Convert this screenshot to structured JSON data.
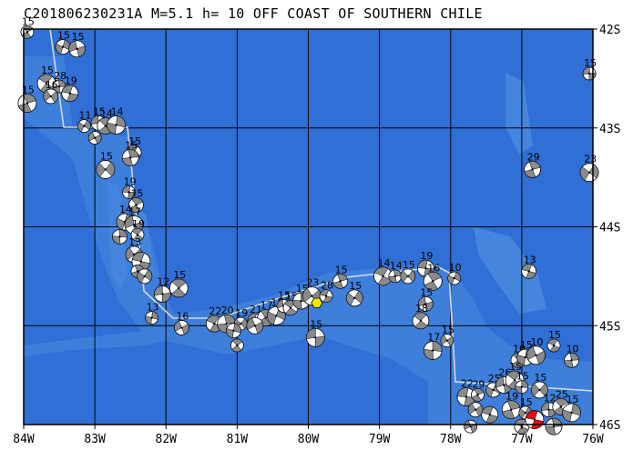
{
  "title": "C201806230231A M=5.1 h= 10 OFF COAST OF SOUTHERN CHILE",
  "map": {
    "lon_range": [
      -84,
      -76
    ],
    "lat_range": [
      -46,
      -42
    ],
    "x_ticks": [
      "84W",
      "83W",
      "82W",
      "81W",
      "80W",
      "79W",
      "78W",
      "77W",
      "76W"
    ],
    "y_ticks": [
      "42S",
      "43S",
      "44S",
      "45S",
      "46S"
    ],
    "colors": {
      "ocean": "#2f6fd6",
      "shelf": "#4b8ce0",
      "grid": "#000000",
      "boundary": "#d8d8d8",
      "hexagon": "#f5e600",
      "highlight": "#e01010"
    },
    "main_event": {
      "lon": -79.88,
      "lat": -44.77,
      "marker": "yellow-hexagon"
    },
    "highlight_event": {
      "lon": -76.82,
      "lat": -45.95,
      "label": "",
      "color": "#e01010"
    },
    "events": [
      {
        "lon": -83.95,
        "lat": -42.03,
        "label": "15"
      },
      {
        "lon": -83.45,
        "lat": -42.18,
        "label": "15"
      },
      {
        "lon": -83.25,
        "lat": -42.2,
        "label": "15"
      },
      {
        "lon": -83.68,
        "lat": -42.55,
        "label": "15"
      },
      {
        "lon": -83.5,
        "lat": -42.58,
        "label": "28"
      },
      {
        "lon": -83.62,
        "lat": -42.68,
        "label": "16"
      },
      {
        "lon": -83.35,
        "lat": -42.65,
        "label": "19"
      },
      {
        "lon": -83.95,
        "lat": -42.75,
        "label": "15"
      },
      {
        "lon": -83.15,
        "lat": -42.98,
        "label": "11"
      },
      {
        "lon": -82.95,
        "lat": -42.95,
        "label": "15"
      },
      {
        "lon": -82.85,
        "lat": -42.98,
        "label": "14"
      },
      {
        "lon": -82.7,
        "lat": -42.97,
        "label": "14"
      },
      {
        "lon": -83.0,
        "lat": -43.1,
        "label": ""
      },
      {
        "lon": -82.45,
        "lat": -43.25,
        "label": "15"
      },
      {
        "lon": -82.5,
        "lat": -43.3,
        "label": "15"
      },
      {
        "lon": -82.85,
        "lat": -43.42,
        "label": "15"
      },
      {
        "lon": -82.52,
        "lat": -43.65,
        "label": "19"
      },
      {
        "lon": -82.42,
        "lat": -43.78,
        "label": "15"
      },
      {
        "lon": -82.58,
        "lat": -43.95,
        "label": "14"
      },
      {
        "lon": -82.45,
        "lat": -43.98,
        "label": "17"
      },
      {
        "lon": -82.4,
        "lat": -44.08,
        "label": "19"
      },
      {
        "lon": -82.65,
        "lat": -44.1,
        "label": ""
      },
      {
        "lon": -82.45,
        "lat": -44.28,
        "label": "13"
      },
      {
        "lon": -82.35,
        "lat": -44.35,
        "label": ""
      },
      {
        "lon": -82.4,
        "lat": -44.45,
        "label": ""
      },
      {
        "lon": -82.3,
        "lat": -44.5,
        "label": ""
      },
      {
        "lon": -82.05,
        "lat": -44.68,
        "label": "12"
      },
      {
        "lon": -81.82,
        "lat": -44.62,
        "label": "15"
      },
      {
        "lon": -82.2,
        "lat": -44.92,
        "label": "13"
      },
      {
        "lon": -81.78,
        "lat": -45.02,
        "label": "16"
      },
      {
        "lon": -81.32,
        "lat": -44.98,
        "label": "22"
      },
      {
        "lon": -81.15,
        "lat": -44.98,
        "label": "20"
      },
      {
        "lon": -80.95,
        "lat": -44.98,
        "label": "19"
      },
      {
        "lon": -80.75,
        "lat": -44.95,
        "label": "21"
      },
      {
        "lon": -80.6,
        "lat": -44.92,
        "label": "17"
      },
      {
        "lon": -80.45,
        "lat": -44.9,
        "label": "15"
      },
      {
        "lon": -80.35,
        "lat": -44.8,
        "label": "15"
      },
      {
        "lon": -80.25,
        "lat": -44.82,
        "label": "15"
      },
      {
        "lon": -80.1,
        "lat": -44.75,
        "label": "15"
      },
      {
        "lon": -79.95,
        "lat": -44.7,
        "label": "23"
      },
      {
        "lon": -79.75,
        "lat": -44.7,
        "label": "28"
      },
      {
        "lon": -79.55,
        "lat": -44.55,
        "label": "15"
      },
      {
        "lon": -79.35,
        "lat": -44.72,
        "label": "15"
      },
      {
        "lon": -79.9,
        "lat": -45.12,
        "label": "15"
      },
      {
        "lon": -81.0,
        "lat": -45.2,
        "label": ""
      },
      {
        "lon": -81.05,
        "lat": -45.05,
        "label": ""
      },
      {
        "lon": -80.75,
        "lat": -45.0,
        "label": ""
      },
      {
        "lon": -78.95,
        "lat": -44.5,
        "label": "14"
      },
      {
        "lon": -78.78,
        "lat": -44.5,
        "label": "14"
      },
      {
        "lon": -78.6,
        "lat": -44.5,
        "label": "15"
      },
      {
        "lon": -78.35,
        "lat": -44.42,
        "label": "19"
      },
      {
        "lon": -78.25,
        "lat": -44.55,
        "label": "16"
      },
      {
        "lon": -77.95,
        "lat": -44.52,
        "label": "10"
      },
      {
        "lon": -78.35,
        "lat": -44.78,
        "label": "15"
      },
      {
        "lon": -78.42,
        "lat": -44.95,
        "label": "18"
      },
      {
        "lon": -78.25,
        "lat": -45.25,
        "label": "17"
      },
      {
        "lon": -78.05,
        "lat": -45.15,
        "label": "15"
      },
      {
        "lon": -76.9,
        "lat": -44.45,
        "label": "13"
      },
      {
        "lon": -76.85,
        "lat": -43.42,
        "label": "29"
      },
      {
        "lon": -76.05,
        "lat": -43.45,
        "label": "23"
      },
      {
        "lon": -76.05,
        "lat": -42.45,
        "label": "15"
      },
      {
        "lon": -77.05,
        "lat": -45.35,
        "label": "10"
      },
      {
        "lon": -76.95,
        "lat": -45.32,
        "label": "15"
      },
      {
        "lon": -76.8,
        "lat": -45.3,
        "label": "10"
      },
      {
        "lon": -76.55,
        "lat": -45.2,
        "label": "15"
      },
      {
        "lon": -76.3,
        "lat": -45.35,
        "label": "10"
      },
      {
        "lon": -76.75,
        "lat": -45.65,
        "label": "15"
      },
      {
        "lon": -77.78,
        "lat": -45.72,
        "label": "22"
      },
      {
        "lon": -77.62,
        "lat": -45.7,
        "label": "29"
      },
      {
        "lon": -77.4,
        "lat": -45.65,
        "label": "25"
      },
      {
        "lon": -77.25,
        "lat": -45.6,
        "label": "26"
      },
      {
        "lon": -77.1,
        "lat": -45.55,
        "label": "15"
      },
      {
        "lon": -77.0,
        "lat": -45.62,
        "label": "15"
      },
      {
        "lon": -77.65,
        "lat": -45.85,
        "label": ""
      },
      {
        "lon": -77.45,
        "lat": -45.9,
        "label": ""
      },
      {
        "lon": -77.15,
        "lat": -45.85,
        "label": "19"
      },
      {
        "lon": -76.95,
        "lat": -45.88,
        "label": "15"
      },
      {
        "lon": -76.62,
        "lat": -45.85,
        "label": "12"
      },
      {
        "lon": -76.45,
        "lat": -45.82,
        "label": "25"
      },
      {
        "lon": -76.3,
        "lat": -45.88,
        "label": "15"
      },
      {
        "lon": -77.72,
        "lat": -46.02,
        "label": ""
      },
      {
        "lon": -77.0,
        "lat": -46.02,
        "label": ""
      },
      {
        "lon": -76.55,
        "lat": -46.02,
        "label": ""
      }
    ]
  }
}
